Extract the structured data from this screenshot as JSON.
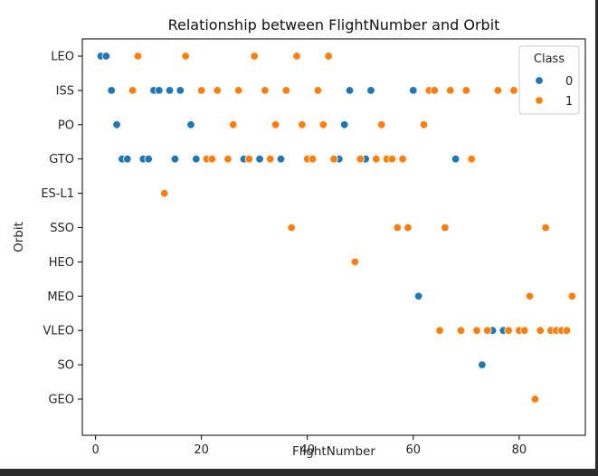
{
  "chart_data": {
    "type": "scatter",
    "title": "Relationship between FlightNumber and Orbit",
    "xlabel": "FlightNumber",
    "ylabel": "Orbit",
    "xlim": [
      -2.5,
      92.5
    ],
    "xticks": [
      0,
      20,
      40,
      60,
      80
    ],
    "categories": [
      "LEO",
      "ISS",
      "PO",
      "GTO",
      "ES-L1",
      "SSO",
      "HEO",
      "MEO",
      "VLEO",
      "SO",
      "GEO"
    ],
    "legend": {
      "title": "Class",
      "position": "top-right"
    },
    "grid": false,
    "series": [
      {
        "name": "0",
        "color": "#1f77b4",
        "points": [
          {
            "x": 1,
            "y": "LEO"
          },
          {
            "x": 2,
            "y": "LEO"
          },
          {
            "x": 3,
            "y": "ISS"
          },
          {
            "x": 11,
            "y": "ISS"
          },
          {
            "x": 12,
            "y": "ISS"
          },
          {
            "x": 14,
            "y": "ISS"
          },
          {
            "x": 16,
            "y": "ISS"
          },
          {
            "x": 48,
            "y": "ISS"
          },
          {
            "x": 52,
            "y": "ISS"
          },
          {
            "x": 60,
            "y": "ISS"
          },
          {
            "x": 4,
            "y": "PO"
          },
          {
            "x": 18,
            "y": "PO"
          },
          {
            "x": 47,
            "y": "PO"
          },
          {
            "x": 5,
            "y": "GTO"
          },
          {
            "x": 6,
            "y": "GTO"
          },
          {
            "x": 9,
            "y": "GTO"
          },
          {
            "x": 10,
            "y": "GTO"
          },
          {
            "x": 15,
            "y": "GTO"
          },
          {
            "x": 19,
            "y": "GTO"
          },
          {
            "x": 28,
            "y": "GTO"
          },
          {
            "x": 31,
            "y": "GTO"
          },
          {
            "x": 35,
            "y": "GTO"
          },
          {
            "x": 46,
            "y": "GTO"
          },
          {
            "x": 51,
            "y": "GTO"
          },
          {
            "x": 68,
            "y": "GTO"
          },
          {
            "x": 61,
            "y": "MEO"
          },
          {
            "x": 75,
            "y": "VLEO"
          },
          {
            "x": 77,
            "y": "VLEO"
          },
          {
            "x": 73,
            "y": "SO"
          }
        ]
      },
      {
        "name": "1",
        "color": "#ff7f0e",
        "points": [
          {
            "x": 8,
            "y": "LEO"
          },
          {
            "x": 17,
            "y": "LEO"
          },
          {
            "x": 30,
            "y": "LEO"
          },
          {
            "x": 38,
            "y": "LEO"
          },
          {
            "x": 44,
            "y": "LEO"
          },
          {
            "x": 7,
            "y": "ISS"
          },
          {
            "x": 20,
            "y": "ISS"
          },
          {
            "x": 23,
            "y": "ISS"
          },
          {
            "x": 27,
            "y": "ISS"
          },
          {
            "x": 32,
            "y": "ISS"
          },
          {
            "x": 36,
            "y": "ISS"
          },
          {
            "x": 42,
            "y": "ISS"
          },
          {
            "x": 63,
            "y": "ISS"
          },
          {
            "x": 64,
            "y": "ISS"
          },
          {
            "x": 67,
            "y": "ISS"
          },
          {
            "x": 70,
            "y": "ISS"
          },
          {
            "x": 76,
            "y": "ISS"
          },
          {
            "x": 79,
            "y": "ISS"
          },
          {
            "x": 26,
            "y": "PO"
          },
          {
            "x": 34,
            "y": "PO"
          },
          {
            "x": 39,
            "y": "PO"
          },
          {
            "x": 43,
            "y": "PO"
          },
          {
            "x": 54,
            "y": "PO"
          },
          {
            "x": 62,
            "y": "PO"
          },
          {
            "x": 21,
            "y": "GTO"
          },
          {
            "x": 22,
            "y": "GTO"
          },
          {
            "x": 25,
            "y": "GTO"
          },
          {
            "x": 29,
            "y": "GTO"
          },
          {
            "x": 33,
            "y": "GTO"
          },
          {
            "x": 40,
            "y": "GTO"
          },
          {
            "x": 41,
            "y": "GTO"
          },
          {
            "x": 45,
            "y": "GTO"
          },
          {
            "x": 50,
            "y": "GTO"
          },
          {
            "x": 53,
            "y": "GTO"
          },
          {
            "x": 55,
            "y": "GTO"
          },
          {
            "x": 56,
            "y": "GTO"
          },
          {
            "x": 58,
            "y": "GTO"
          },
          {
            "x": 71,
            "y": "GTO"
          },
          {
            "x": 13,
            "y": "ES-L1"
          },
          {
            "x": 37,
            "y": "SSO"
          },
          {
            "x": 57,
            "y": "SSO"
          },
          {
            "x": 59,
            "y": "SSO"
          },
          {
            "x": 66,
            "y": "SSO"
          },
          {
            "x": 85,
            "y": "SSO"
          },
          {
            "x": 49,
            "y": "HEO"
          },
          {
            "x": 82,
            "y": "MEO"
          },
          {
            "x": 90,
            "y": "MEO"
          },
          {
            "x": 65,
            "y": "VLEO"
          },
          {
            "x": 69,
            "y": "VLEO"
          },
          {
            "x": 72,
            "y": "VLEO"
          },
          {
            "x": 74,
            "y": "VLEO"
          },
          {
            "x": 78,
            "y": "VLEO"
          },
          {
            "x": 80,
            "y": "VLEO"
          },
          {
            "x": 81,
            "y": "VLEO"
          },
          {
            "x": 84,
            "y": "VLEO"
          },
          {
            "x": 86,
            "y": "VLEO"
          },
          {
            "x": 87,
            "y": "VLEO"
          },
          {
            "x": 88,
            "y": "VLEO"
          },
          {
            "x": 89,
            "y": "VLEO"
          },
          {
            "x": 83,
            "y": "GEO"
          }
        ]
      }
    ]
  }
}
